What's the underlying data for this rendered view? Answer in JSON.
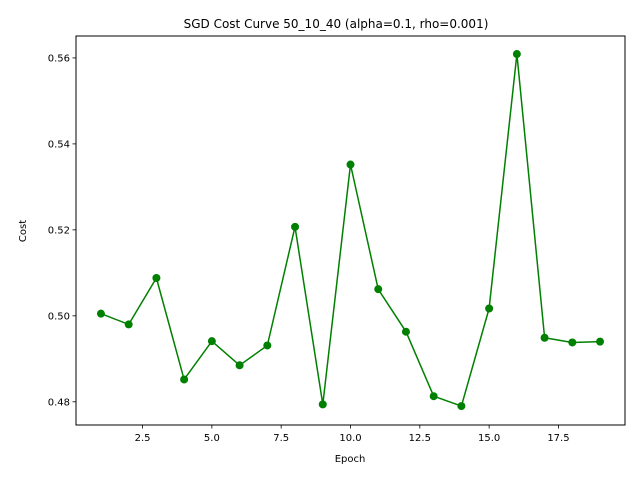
{
  "chart_data": {
    "type": "line",
    "title": "SGD Cost Curve 50_10_40 (alpha=0.1, rho=0.001)",
    "xlabel": "Epoch",
    "ylabel": "Cost",
    "xlim": [
      0.1,
      19.9
    ],
    "ylim": [
      0.4746,
      0.5651
    ],
    "xticks": [
      2.5,
      5.0,
      7.5,
      10.0,
      12.5,
      15.0,
      17.5
    ],
    "xtick_labels": [
      "2.5",
      "5.0",
      "7.5",
      "10.0",
      "12.5",
      "15.0",
      "17.5"
    ],
    "yticks": [
      0.48,
      0.5,
      0.52,
      0.54,
      0.56
    ],
    "ytick_labels": [
      "0.48",
      "0.50",
      "0.52",
      "0.54",
      "0.56"
    ],
    "grid": false,
    "series": [
      {
        "color": "#008000",
        "marker": "circle",
        "x": [
          1,
          2,
          3,
          4,
          5,
          6,
          7,
          8,
          9,
          10,
          11,
          12,
          13,
          14,
          15,
          16,
          17,
          18,
          19
        ],
        "y": [
          0.5005,
          0.498,
          0.5088,
          0.4852,
          0.4941,
          0.4885,
          0.4931,
          0.5207,
          0.4794,
          0.5352,
          0.5062,
          0.4963,
          0.4813,
          0.479,
          0.5017,
          0.5609,
          0.4949,
          0.4938,
          0.494
        ]
      }
    ]
  }
}
